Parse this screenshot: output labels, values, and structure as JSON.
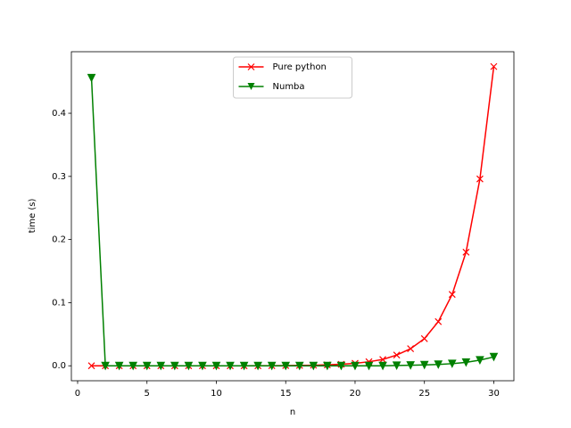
{
  "chart_data": {
    "type": "line",
    "xlabel": "n",
    "ylabel": "time (s)",
    "x": [
      1,
      2,
      3,
      4,
      5,
      6,
      7,
      8,
      9,
      10,
      11,
      12,
      13,
      14,
      15,
      16,
      17,
      18,
      19,
      20,
      21,
      22,
      23,
      24,
      25,
      26,
      27,
      28,
      29,
      30
    ],
    "series": [
      {
        "name": "Pure python",
        "color": "#ff0000",
        "marker": "x",
        "values": [
          0,
          0,
          0,
          0,
          0,
          0,
          0,
          0,
          0,
          0,
          0,
          0,
          0.0001,
          0.0002,
          0.0004,
          0.0006,
          0.0009,
          0.0015,
          0.0024,
          0.0039,
          0.0064,
          0.01,
          0.017,
          0.027,
          0.043,
          0.07,
          0.113,
          0.18,
          0.296,
          0.474
        ]
      },
      {
        "name": "Numba",
        "color": "#008000",
        "marker": "v",
        "values": [
          0.456,
          0,
          0,
          0,
          0,
          0,
          0,
          0,
          0,
          0,
          0,
          0,
          0,
          0,
          0,
          0,
          0,
          0,
          0,
          0,
          0,
          0,
          0.0005,
          0.0008,
          0.0013,
          0.0021,
          0.0034,
          0.0055,
          0.009,
          0.014
        ]
      }
    ],
    "xlim": [
      -0.45,
      31.45
    ],
    "ylim": [
      -0.0237,
      0.4975
    ],
    "xticks": [
      0,
      5,
      10,
      15,
      20,
      25,
      30
    ],
    "yticks": [
      {
        "value": 0,
        "label": "0.0"
      },
      {
        "value": 0.1,
        "label": "0.1"
      },
      {
        "value": 0.2,
        "label": "0.2"
      },
      {
        "value": 0.3,
        "label": "0.3"
      },
      {
        "value": 0.4,
        "label": "0.4"
      }
    ],
    "legend": "upper center"
  }
}
